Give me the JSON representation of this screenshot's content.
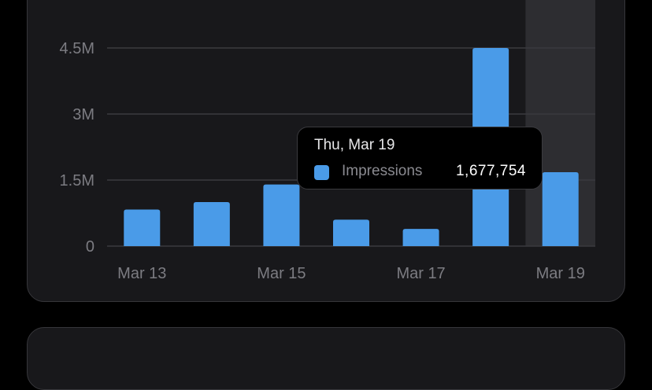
{
  "colors": {
    "bar": "#4a9be8",
    "grid": "#3a3a3f",
    "highlight": "#2d2d31"
  },
  "chart_data": {
    "type": "bar",
    "categories": [
      "Mar 13",
      "Mar 14",
      "Mar 15",
      "Mar 16",
      "Mar 17",
      "Mar 18",
      "Mar 19"
    ],
    "x_tick_labels": [
      "Mar 13",
      "Mar 15",
      "Mar 17",
      "Mar 19"
    ],
    "series": [
      {
        "name": "Impressions",
        "values": [
          830000,
          1000000,
          1400000,
          600000,
          390000,
          4500000,
          1677754
        ]
      }
    ],
    "y_ticks": [
      0,
      1500000,
      3000000,
      4500000
    ],
    "y_tick_labels": [
      "0",
      "1.5M",
      "3M",
      "4.5M"
    ],
    "ylim": [
      0,
      4500000
    ],
    "highlighted_category": "Mar 19",
    "grid": true
  },
  "tooltip": {
    "date": "Thu, Mar 19",
    "series_name": "Impressions",
    "value": "1,677,754"
  }
}
